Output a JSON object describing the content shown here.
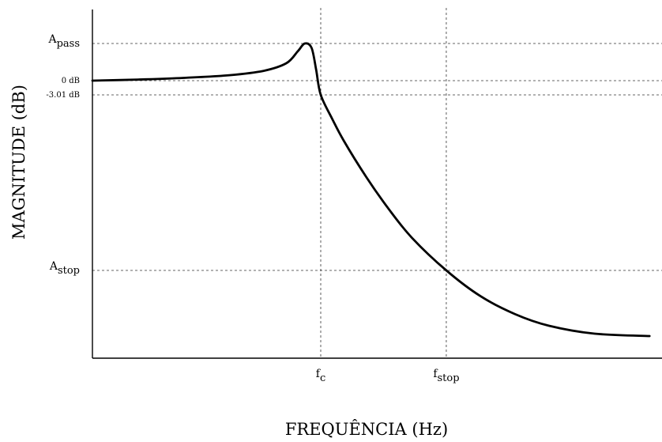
{
  "chart_data": {
    "type": "line",
    "xlabel": "FREQUÊNCIA (Hz)",
    "ylabel": "MAGNITUDE (dB)",
    "y_ticks": [
      {
        "id": "apass",
        "base": "A",
        "sub": "pass"
      },
      {
        "id": "zero",
        "text": "0 dB"
      },
      {
        "id": "m301",
        "text": "-3.01 dB"
      },
      {
        "id": "astop",
        "base": "A",
        "sub": "stop"
      }
    ],
    "x_ticks": [
      {
        "id": "fc",
        "base": "f",
        "sub": "c"
      },
      {
        "id": "fstop",
        "base": "f",
        "sub": "stop"
      }
    ],
    "series": [
      {
        "color": "#000000",
        "points_note": "x in arbitrary linear frequency units (fc = 1.0, fstop = 1.55), y in dB",
        "x": [
          0.0,
          0.2,
          0.4,
          0.6,
          0.75,
          0.85,
          0.9,
          0.93,
          0.96,
          0.98,
          1.0,
          1.05,
          1.1,
          1.2,
          1.3,
          1.4,
          1.55,
          1.7,
          1.85,
          2.0,
          2.2,
          2.44
        ],
        "y": [
          0.0,
          0.1,
          0.25,
          0.5,
          0.9,
          1.6,
          2.7,
          3.4,
          3.0,
          1.0,
          -3.01,
          -8.5,
          -13.5,
          -22.0,
          -29.5,
          -36.0,
          -43.5,
          -49.0,
          -52.8,
          -55.3,
          -57.0,
          -57.5
        ]
      }
    ],
    "grid": "dashed reference lines at tick values",
    "line_color": "#000000"
  }
}
